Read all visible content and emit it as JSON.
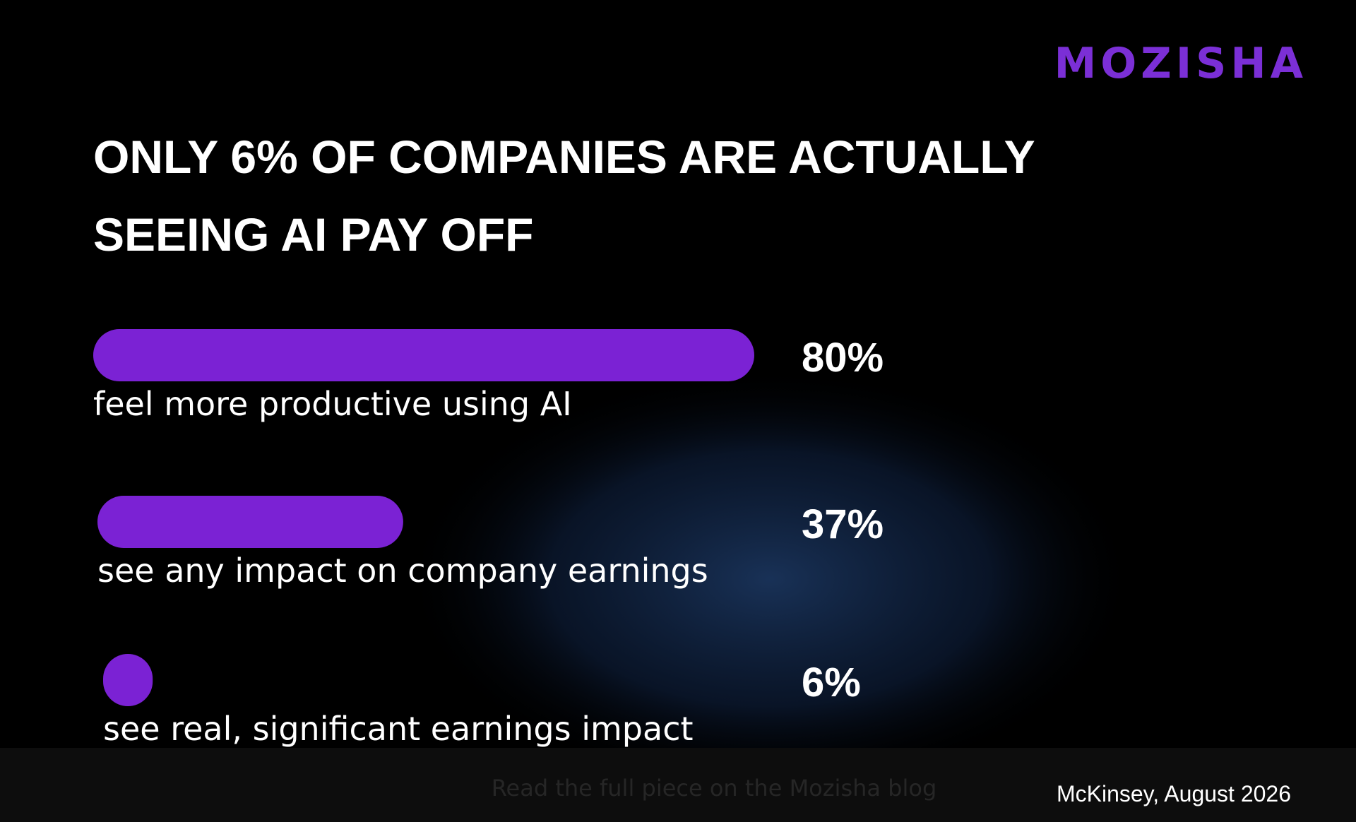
{
  "chart_data": {
    "type": "bar",
    "brand": "MOZISHA",
    "title": [
      "ONLY 6% OF COMPANIES ARE ACTUALLY",
      "SEEING AI PAY OFF"
    ],
    "categories": [
      "feel more productive using AI",
      "see any impact on company earnings",
      "see real, significant earnings impact"
    ],
    "values": [
      80,
      37,
      6
    ],
    "value_labels": [
      "80%",
      "37%",
      "6%"
    ],
    "color": "#7b22d4",
    "footer": "Read the full piece on the Mozisha blog",
    "source": "McKinsey, August 2026"
  }
}
